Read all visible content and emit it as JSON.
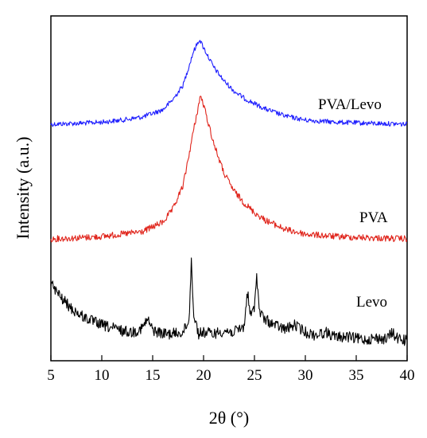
{
  "chart_data": {
    "type": "line",
    "xlabel": "2θ (°)",
    "ylabel": "Intensity (a.u.)",
    "xlim": [
      5,
      40
    ],
    "y_ticks_shown": false,
    "x_ticks": [
      5,
      10,
      15,
      20,
      25,
      30,
      35,
      40
    ],
    "x_tick_labels": [
      "5",
      "10",
      "15",
      "20",
      "25",
      "30",
      "35",
      "40"
    ],
    "grid": false,
    "legend": "none; series labelled directly on the right",
    "series": [
      {
        "name": "PVA/Levo",
        "color": "#1f1fff",
        "baseline": 0.0,
        "points": [
          [
            5,
            0.0
          ],
          [
            8,
            0.01
          ],
          [
            10,
            0.02
          ],
          [
            12,
            0.04
          ],
          [
            14,
            0.07
          ],
          [
            16,
            0.14
          ],
          [
            17,
            0.24
          ],
          [
            18,
            0.38
          ],
          [
            19,
            0.7
          ],
          [
            19.6,
            0.82
          ],
          [
            20,
            0.74
          ],
          [
            21,
            0.55
          ],
          [
            22,
            0.42
          ],
          [
            23,
            0.32
          ],
          [
            24,
            0.25
          ],
          [
            25,
            0.2
          ],
          [
            26,
            0.15
          ],
          [
            28,
            0.08
          ],
          [
            30,
            0.04
          ],
          [
            33,
            0.02
          ],
          [
            36,
            0.01
          ],
          [
            40,
            0.0
          ]
        ]
      },
      {
        "name": "PVA",
        "color": "#e0241b",
        "baseline": 0.0,
        "points": [
          [
            5,
            0.0
          ],
          [
            8,
            0.01
          ],
          [
            10,
            0.02
          ],
          [
            12,
            0.04
          ],
          [
            14,
            0.06
          ],
          [
            16,
            0.14
          ],
          [
            17,
            0.25
          ],
          [
            18,
            0.45
          ],
          [
            19,
            0.9
          ],
          [
            19.7,
            1.2
          ],
          [
            20,
            1.12
          ],
          [
            21,
            0.8
          ],
          [
            22,
            0.55
          ],
          [
            23,
            0.4
          ],
          [
            24,
            0.3
          ],
          [
            25,
            0.22
          ],
          [
            26,
            0.16
          ],
          [
            28,
            0.08
          ],
          [
            30,
            0.04
          ],
          [
            33,
            0.02
          ],
          [
            36,
            0.01
          ],
          [
            40,
            0.0
          ]
        ]
      },
      {
        "name": "Levo",
        "color": "#000000",
        "baseline": 0.0,
        "points": [
          [
            5,
            0.8
          ],
          [
            6,
            0.6
          ],
          [
            7,
            0.45
          ],
          [
            8,
            0.35
          ],
          [
            9,
            0.28
          ],
          [
            10,
            0.22
          ],
          [
            11,
            0.18
          ],
          [
            12,
            0.14
          ],
          [
            13,
            0.12
          ],
          [
            14,
            0.18
          ],
          [
            14.5,
            0.3
          ],
          [
            15,
            0.15
          ],
          [
            16,
            0.1
          ],
          [
            17,
            0.1
          ],
          [
            18,
            0.12
          ],
          [
            18.6,
            0.3
          ],
          [
            18.8,
            1.2
          ],
          [
            19.0,
            0.4
          ],
          [
            19.5,
            0.1
          ],
          [
            20,
            0.12
          ],
          [
            21,
            0.1
          ],
          [
            22,
            0.14
          ],
          [
            23,
            0.12
          ],
          [
            24,
            0.2
          ],
          [
            24.3,
            0.7
          ],
          [
            24.6,
            0.35
          ],
          [
            25,
            0.45
          ],
          [
            25.2,
            0.95
          ],
          [
            25.5,
            0.4
          ],
          [
            26,
            0.3
          ],
          [
            27,
            0.22
          ],
          [
            28,
            0.16
          ],
          [
            29,
            0.22
          ],
          [
            30,
            0.12
          ],
          [
            31,
            0.08
          ],
          [
            32,
            0.12
          ],
          [
            33,
            0.05
          ],
          [
            34,
            0.06
          ],
          [
            35,
            0.03
          ],
          [
            36,
            0.02
          ],
          [
            37,
            0.04
          ],
          [
            38,
            0.02
          ],
          [
            38.5,
            0.12
          ],
          [
            39,
            0.04
          ],
          [
            40,
            0.0
          ]
        ]
      }
    ]
  }
}
